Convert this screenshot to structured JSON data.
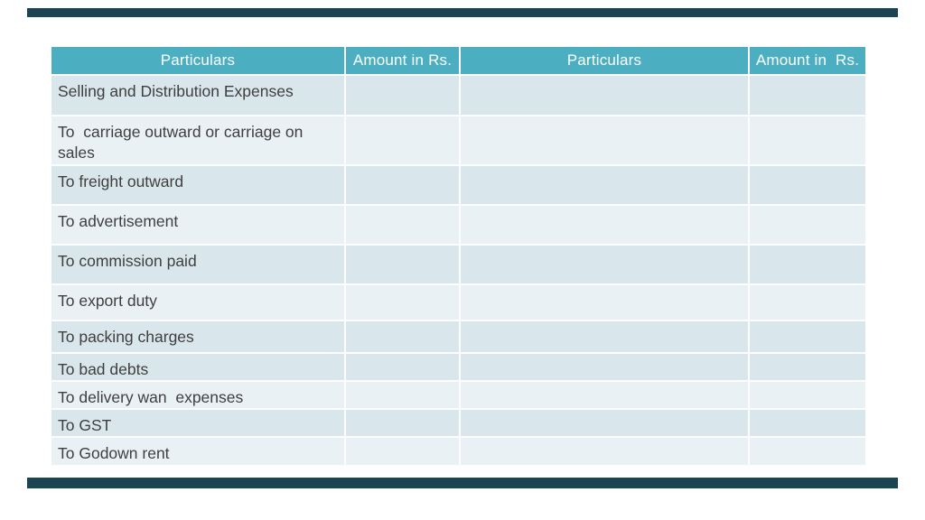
{
  "slide": {
    "background_color": "#ffffff",
    "accent_bar_color": "#1c4553"
  },
  "table": {
    "header_bg_color": "#4bafc1",
    "header_text_color": "#ffffff",
    "band_dark_color": "#d9e7ec",
    "band_light_color": "#e9f1f5",
    "body_text_color": "#3f3f3f",
    "columns": [
      {
        "label": "Particulars"
      },
      {
        "label": "Amount in Rs."
      },
      {
        "label": "Particulars"
      },
      {
        "label": "Amount in  Rs."
      }
    ],
    "rows": [
      {
        "particulars": "Selling and Distribution Expenses",
        "amount_in_rs": "",
        "particulars_2": "",
        "amount_in_rs_2": "",
        "band": "dark"
      },
      {
        "particulars": "To  carriage outward or carriage on sales",
        "amount_in_rs": "",
        "particulars_2": "",
        "amount_in_rs_2": "",
        "band": "light"
      },
      {
        "particulars": "To freight outward",
        "amount_in_rs": "",
        "particulars_2": "",
        "amount_in_rs_2": "",
        "band": "dark"
      },
      {
        "particulars": "To advertisement",
        "amount_in_rs": "",
        "particulars_2": "",
        "amount_in_rs_2": "",
        "band": "light"
      },
      {
        "particulars": "To commission paid",
        "amount_in_rs": "",
        "particulars_2": "",
        "amount_in_rs_2": "",
        "band": "dark"
      },
      {
        "particulars": "To export duty",
        "amount_in_rs": "",
        "particulars_2": "",
        "amount_in_rs_2": "",
        "band": "light"
      },
      {
        "particulars": "To packing charges",
        "amount_in_rs": "",
        "particulars_2": "",
        "amount_in_rs_2": "",
        "band": "dark"
      },
      {
        "particulars": "To bad debts",
        "amount_in_rs": "",
        "particulars_2": "",
        "amount_in_rs_2": "",
        "band": "dark"
      },
      {
        "particulars": "To delivery wan  expenses",
        "amount_in_rs": "",
        "particulars_2": "",
        "amount_in_rs_2": "",
        "band": "light"
      },
      {
        "particulars": "To GST",
        "amount_in_rs": "",
        "particulars_2": "",
        "amount_in_rs_2": "",
        "band": "dark"
      },
      {
        "particulars": "To Godown rent",
        "amount_in_rs": "",
        "particulars_2": "",
        "amount_in_rs_2": "",
        "band": "light"
      }
    ]
  }
}
